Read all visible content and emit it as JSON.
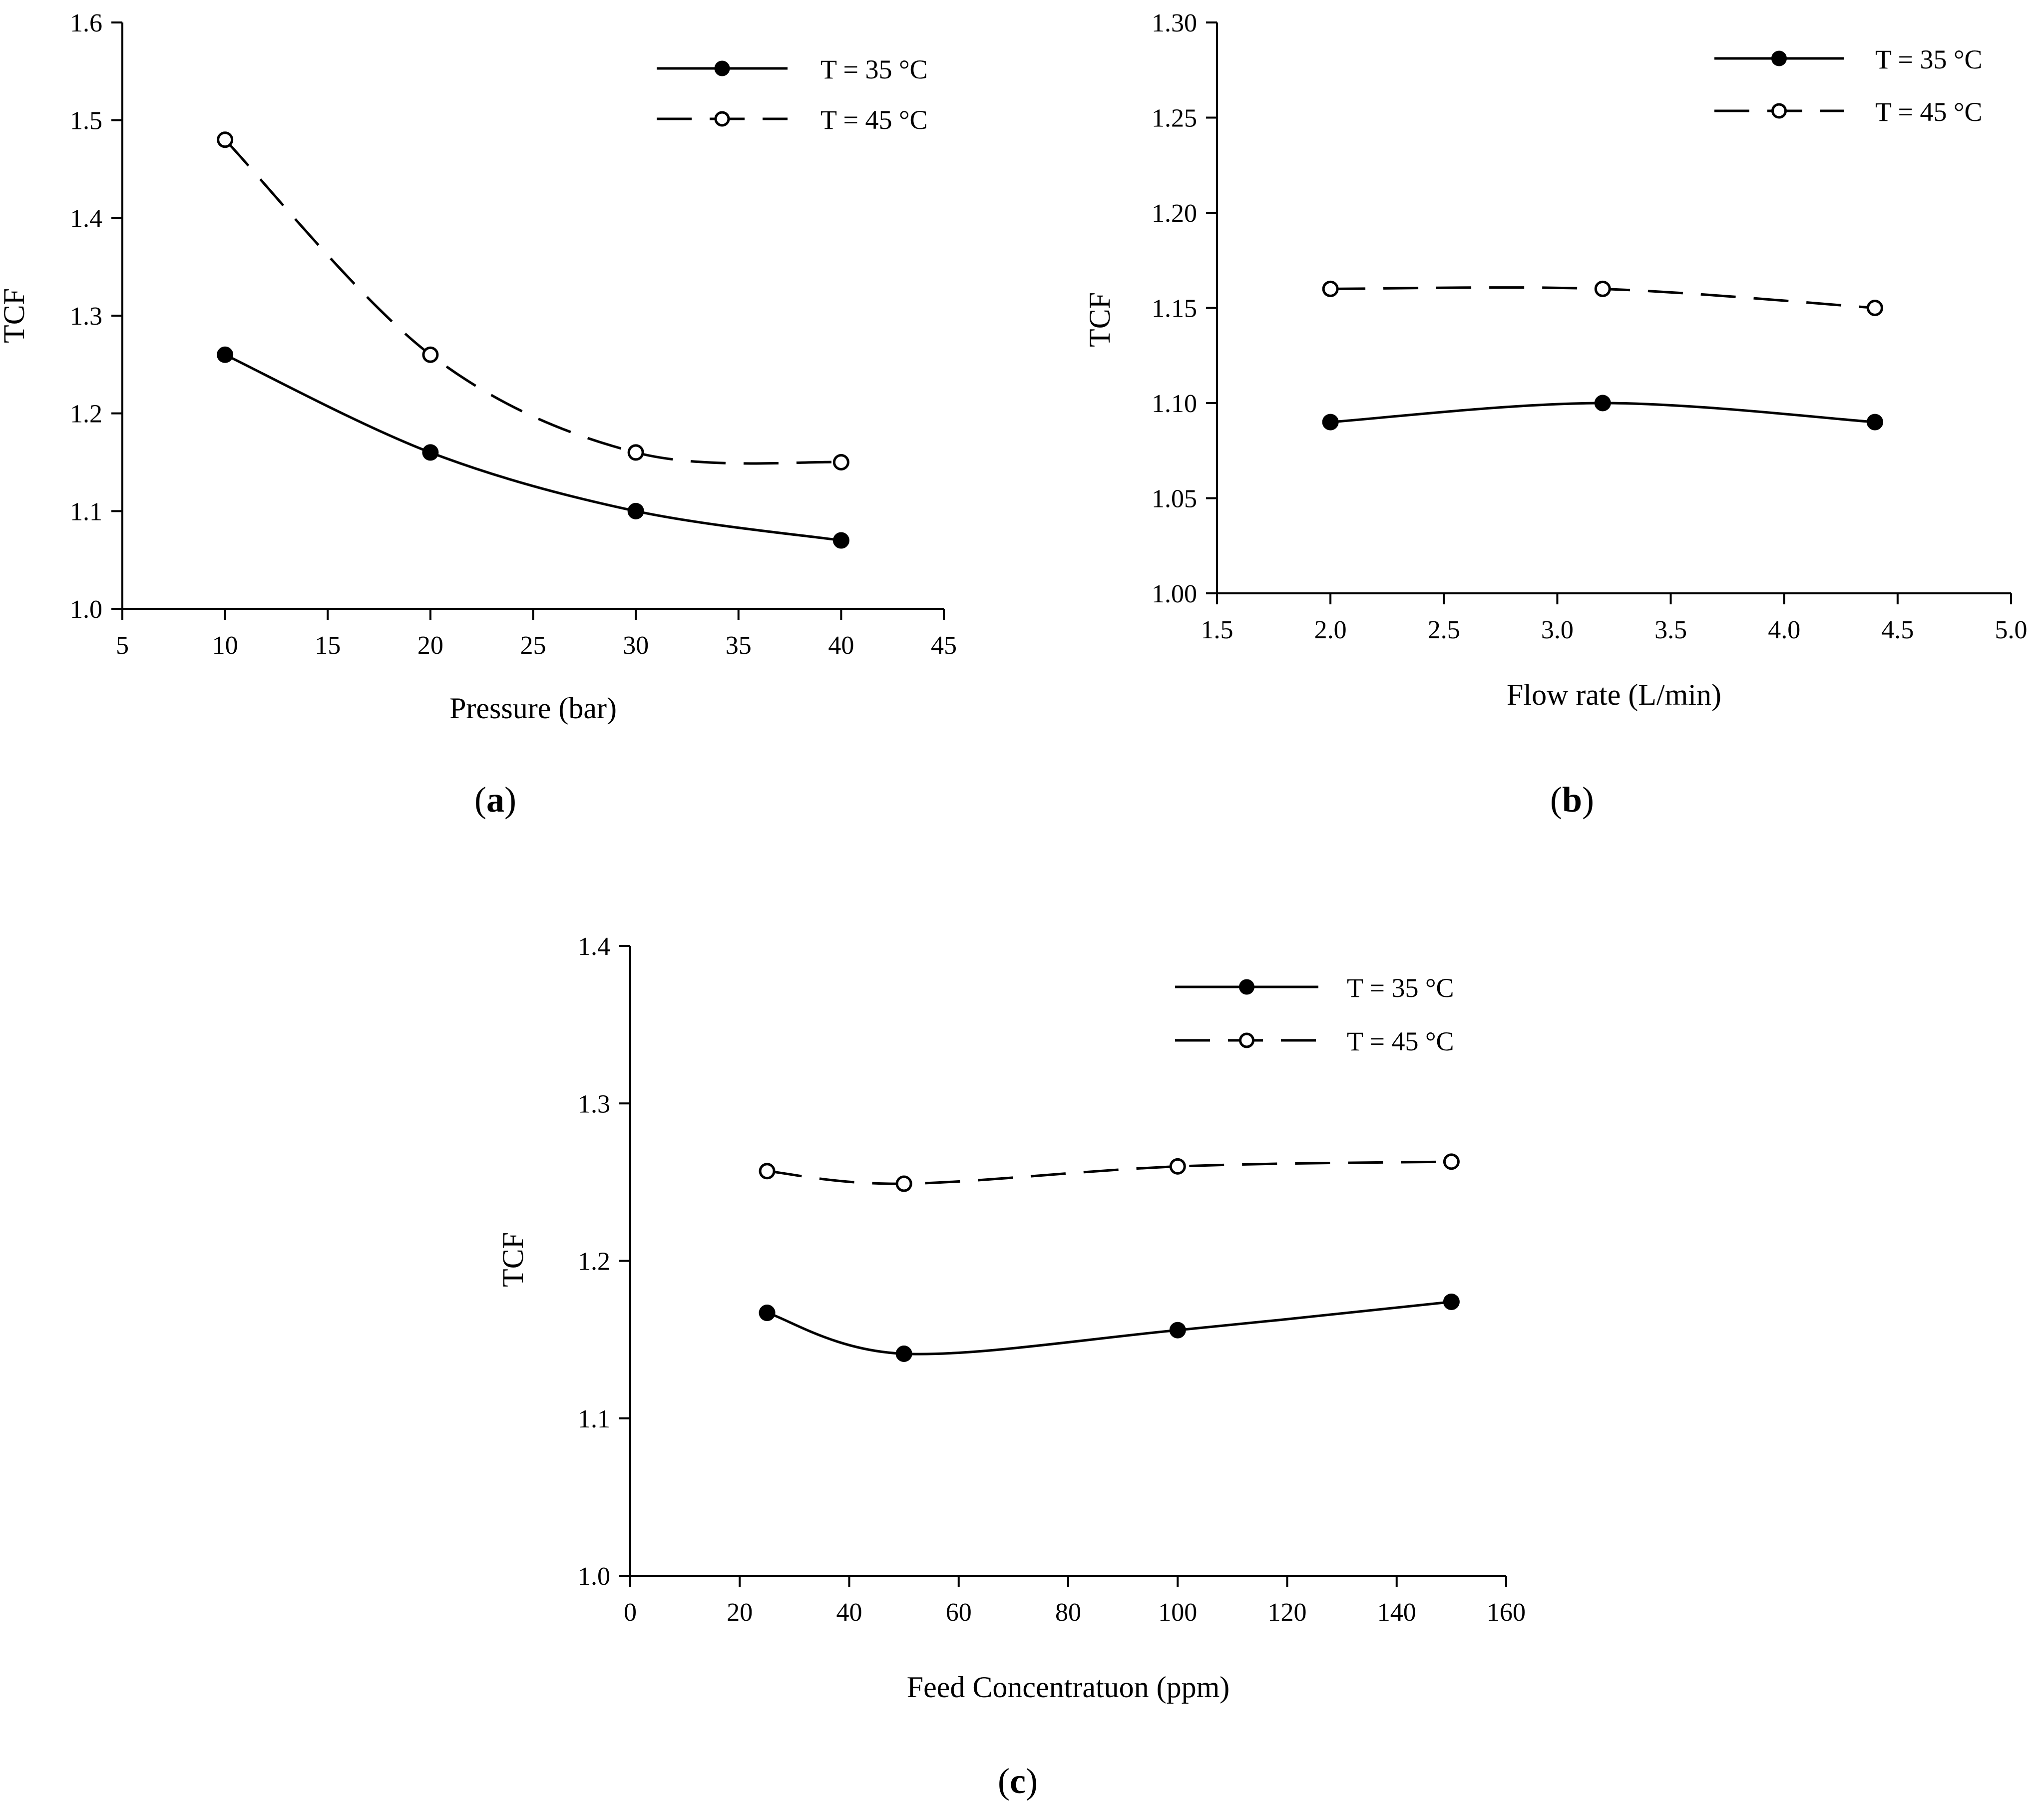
{
  "chart_data": [
    {
      "panel": "a",
      "type": "line",
      "xlabel": "Pressure (bar)",
      "ylabel": "TCF",
      "xlim": [
        5,
        45
      ],
      "ylim": [
        1.0,
        1.6
      ],
      "xticks": [
        5,
        10,
        15,
        20,
        25,
        30,
        35,
        40,
        45
      ],
      "yticks": [
        1.0,
        1.1,
        1.2,
        1.3,
        1.4,
        1.5,
        1.6
      ],
      "xtick_labels": [
        "5",
        "10",
        "15",
        "20",
        "25",
        "30",
        "35",
        "40",
        "45"
      ],
      "ytick_labels": [
        "1.0",
        "1.1",
        "1.2",
        "1.3",
        "1.4",
        "1.5",
        "1.6"
      ],
      "legend_position": "top-right",
      "series": [
        {
          "name": "T = 35 °C",
          "style": "solid",
          "marker": "filled",
          "x": [
            10,
            20,
            30,
            40
          ],
          "y": [
            1.26,
            1.16,
            1.1,
            1.07
          ]
        },
        {
          "name": "T = 45 °C",
          "style": "dashed",
          "marker": "open",
          "x": [
            10,
            20,
            30,
            40
          ],
          "y": [
            1.48,
            1.26,
            1.16,
            1.15
          ]
        }
      ]
    },
    {
      "panel": "b",
      "type": "line",
      "xlabel": "Flow rate (L/min)",
      "ylabel": "TCF",
      "xlim": [
        1.5,
        5.0
      ],
      "ylim": [
        1.0,
        1.3
      ],
      "xticks": [
        1.5,
        2.0,
        2.5,
        3.0,
        3.5,
        4.0,
        4.5,
        5.0
      ],
      "yticks": [
        1.0,
        1.05,
        1.1,
        1.15,
        1.2,
        1.25,
        1.3
      ],
      "xtick_labels": [
        "1.5",
        "2.0",
        "2.5",
        "3.0",
        "3.5",
        "4.0",
        "4.5",
        "5.0"
      ],
      "ytick_labels": [
        "1.00",
        "1.05",
        "1.10",
        "1.15",
        "1.20",
        "1.25",
        "1.30"
      ],
      "legend_position": "top-right",
      "series": [
        {
          "name": "T = 35 °C",
          "style": "solid",
          "marker": "filled",
          "x": [
            2.0,
            3.2,
            4.4
          ],
          "y": [
            1.09,
            1.1,
            1.09
          ]
        },
        {
          "name": "T = 45 °C",
          "style": "dashed",
          "marker": "open",
          "x": [
            2.0,
            3.2,
            4.4
          ],
          "y": [
            1.16,
            1.16,
            1.15
          ]
        }
      ]
    },
    {
      "panel": "c",
      "type": "line",
      "xlabel": "Feed Concentratuon (ppm)",
      "ylabel": "TCF",
      "xlim": [
        0,
        160
      ],
      "ylim": [
        1.0,
        1.4
      ],
      "xticks": [
        0,
        20,
        40,
        60,
        80,
        100,
        120,
        140,
        160
      ],
      "yticks": [
        1.0,
        1.1,
        1.2,
        1.3,
        1.4
      ],
      "xtick_labels": [
        "0",
        "20",
        "40",
        "60",
        "80",
        "100",
        "120",
        "140",
        "160"
      ],
      "ytick_labels": [
        "1.0",
        "1.1",
        "1.2",
        "1.3",
        "1.4"
      ],
      "legend_position": "top-right",
      "series": [
        {
          "name": "T = 35 °C",
          "style": "solid",
          "marker": "filled",
          "x": [
            25,
            50,
            100,
            150
          ],
          "y": [
            1.167,
            1.141,
            1.156,
            1.174
          ]
        },
        {
          "name": "T = 45 °C",
          "style": "dashed",
          "marker": "open",
          "x": [
            25,
            50,
            100,
            150
          ],
          "y": [
            1.257,
            1.249,
            1.26,
            1.263
          ]
        }
      ]
    }
  ]
}
